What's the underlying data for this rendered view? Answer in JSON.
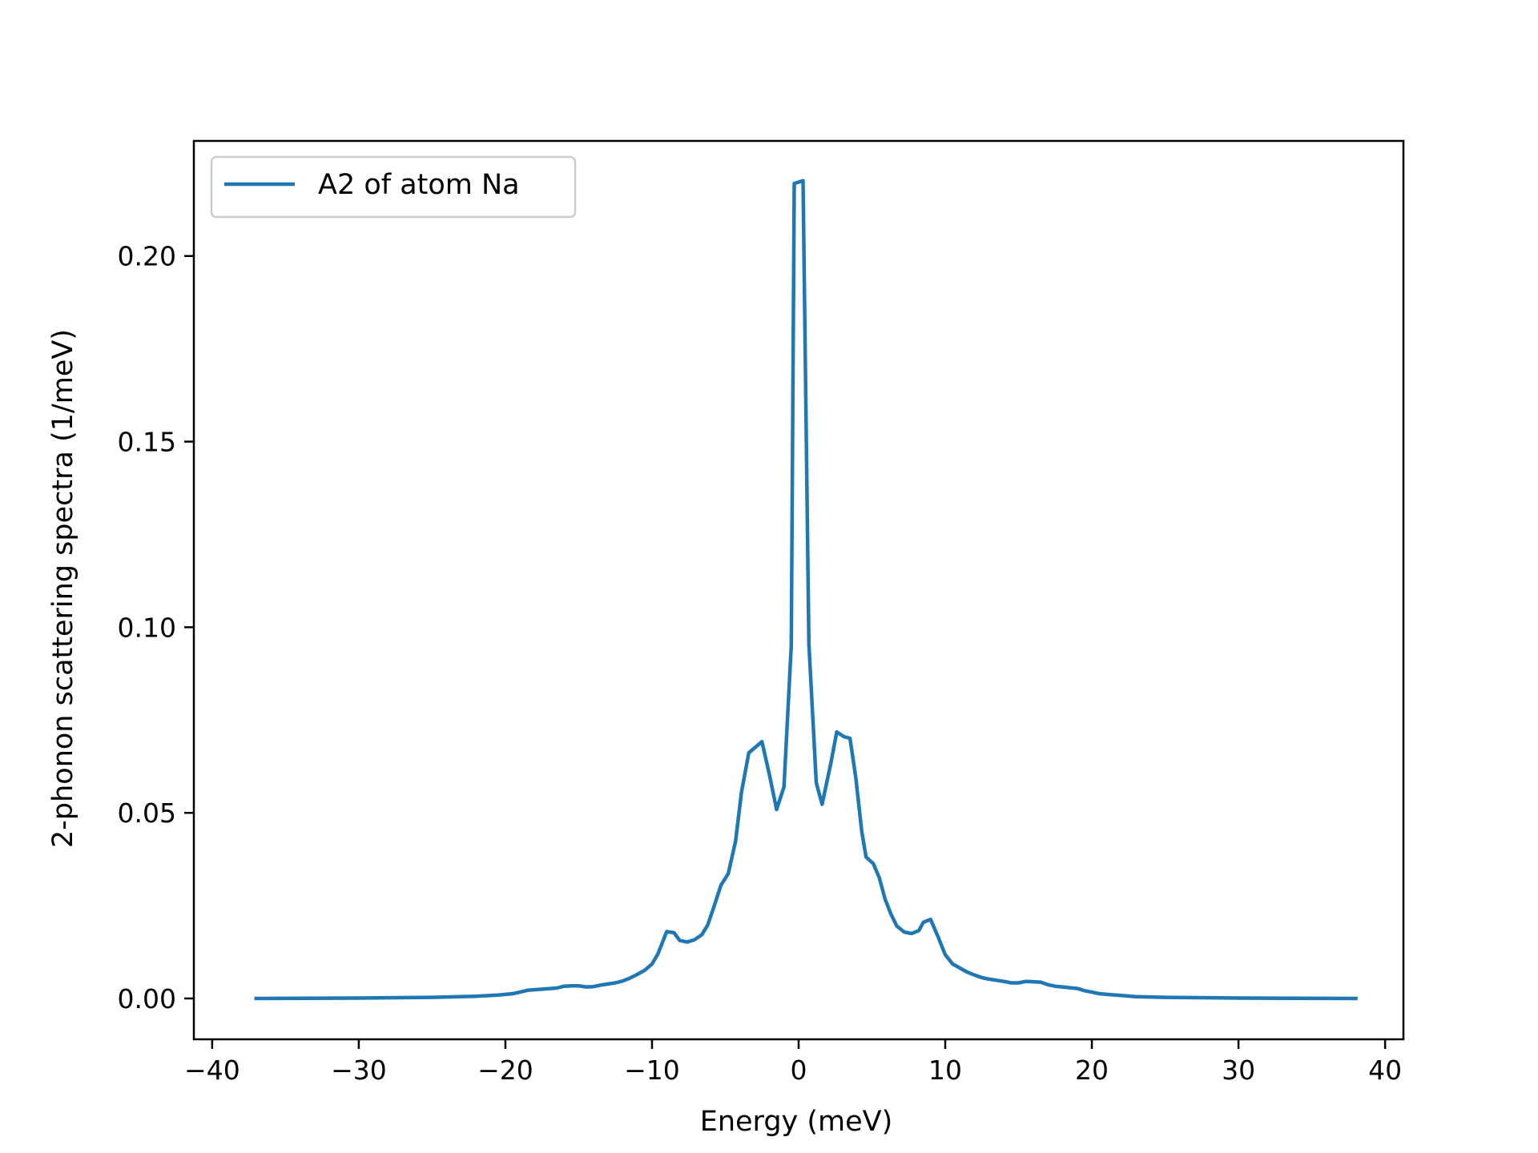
{
  "chart_data": {
    "type": "line",
    "title": "",
    "xlabel": "Energy (meV)",
    "ylabel": "2-phonon scattering spectra (1/meV)",
    "xlim": [
      -41.25,
      41.25
    ],
    "ylim": [
      -0.011,
      0.231
    ],
    "xticks": [
      -40,
      -30,
      -20,
      -10,
      0,
      10,
      20,
      30,
      40
    ],
    "xtick_labels": [
      "−40",
      "−30",
      "−20",
      "−10",
      "0",
      "10",
      "20",
      "30",
      "40"
    ],
    "yticks": [
      0.0,
      0.05,
      0.1,
      0.15,
      0.2
    ],
    "ytick_labels": [
      "0.00",
      "0.05",
      "0.10",
      "0.15",
      "0.20"
    ],
    "grid": false,
    "legend": {
      "placement": "top-left"
    },
    "series": [
      {
        "name": "A2 of atom Na",
        "color": "#1f77b4",
        "x": [
          -37.0,
          -30.0,
          -25.0,
          -22.0,
          -20.5,
          -19.5,
          -19.0,
          -18.5,
          -17.5,
          -16.5,
          -16.0,
          -15.5,
          -15.0,
          -14.5,
          -14.0,
          -13.5,
          -13.0,
          -12.5,
          -12.0,
          -11.5,
          -11.0,
          -10.5,
          -10.0,
          -9.6,
          -9.0,
          -8.5,
          -8.1,
          -7.6,
          -7.1,
          -6.6,
          -6.2,
          -5.8,
          -5.3,
          -4.8,
          -4.3,
          -3.9,
          -3.4,
          -3.0,
          -2.5,
          -2.0,
          -1.5,
          -1.0,
          -0.5,
          -0.3,
          0.3,
          0.7,
          1.2,
          1.6,
          2.2,
          2.6,
          3.1,
          3.5,
          3.9,
          4.3,
          4.6,
          5.1,
          5.5,
          5.9,
          6.3,
          6.7,
          7.2,
          7.7,
          8.2,
          8.5,
          9.0,
          9.5,
          10.0,
          10.5,
          11.0,
          11.5,
          12.0,
          12.5,
          13.0,
          13.5,
          14.0,
          14.5,
          15.0,
          15.5,
          16.0,
          16.5,
          17.0,
          17.5,
          18.0,
          18.5,
          19.0,
          19.5,
          20.0,
          20.5,
          21.0,
          22.0,
          23.0,
          25.0,
          30.0,
          38.0
        ],
        "y": [
          0.0,
          0.0001,
          0.0003,
          0.0006,
          0.0009,
          0.0013,
          0.0017,
          0.0022,
          0.0025,
          0.0028,
          0.0033,
          0.0034,
          0.0034,
          0.0031,
          0.0032,
          0.0036,
          0.0039,
          0.0042,
          0.0047,
          0.0055,
          0.0065,
          0.0076,
          0.0093,
          0.012,
          0.018,
          0.0177,
          0.0156,
          0.0152,
          0.0158,
          0.0172,
          0.0198,
          0.0244,
          0.0305,
          0.0336,
          0.0424,
          0.0555,
          0.0662,
          0.0675,
          0.0692,
          0.0604,
          0.0509,
          0.057,
          0.0951,
          0.2195,
          0.2203,
          0.0955,
          0.0581,
          0.0523,
          0.0635,
          0.0718,
          0.0705,
          0.0701,
          0.0594,
          0.0451,
          0.0381,
          0.0363,
          0.0325,
          0.0267,
          0.0227,
          0.0195,
          0.0179,
          0.0175,
          0.0183,
          0.0205,
          0.0213,
          0.0167,
          0.0118,
          0.0093,
          0.0082,
          0.0071,
          0.0063,
          0.0056,
          0.0052,
          0.0049,
          0.0046,
          0.0042,
          0.0042,
          0.0046,
          0.0045,
          0.0044,
          0.0037,
          0.0033,
          0.0031,
          0.0029,
          0.0027,
          0.0021,
          0.0017,
          0.0013,
          0.0011,
          0.0008,
          0.0005,
          0.0003,
          0.0001,
          0.0
        ]
      }
    ]
  }
}
